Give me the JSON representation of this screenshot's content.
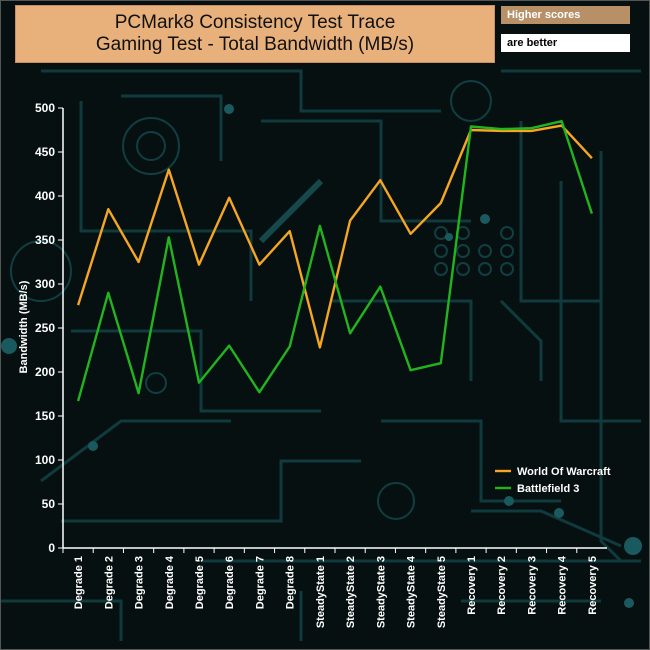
{
  "header": {
    "title_line1": "PCMark8 Consistency Test Trace",
    "title_line2": "Gaming Test - Total Bandwidth (MB/s)",
    "note_line1": "Higher scores",
    "note_line2": "are better"
  },
  "chart_data": {
    "type": "line",
    "ylabel": "Bandwidth (MB/s)",
    "xlabel": "",
    "ylim": [
      0,
      500
    ],
    "yticks": [
      0,
      50,
      100,
      150,
      200,
      250,
      300,
      350,
      400,
      450,
      500
    ],
    "grid": false,
    "legend_position": "bottom-right",
    "categories": [
      "Degrade 1",
      "Degrade 2",
      "Degrade 3",
      "Degrade 4",
      "Degrade 5",
      "Degrade 6",
      "Degrade 7",
      "Degrade 8",
      "SteadyState 1",
      "SteadyState 2",
      "SteadyState 3",
      "SteadyState 4",
      "SteadyState 5",
      "Recovery 1",
      "Recovery 2",
      "Recovery 3",
      "Recovery 4",
      "Recovery 5"
    ],
    "series": [
      {
        "name": "World Of Warcraft",
        "color": "#f5a623",
        "values": [
          276,
          385,
          325,
          430,
          322,
          398,
          322,
          360,
          228,
          372,
          418,
          357,
          392,
          475,
          474,
          474,
          480,
          443
        ]
      },
      {
        "name": "Battlefield 3",
        "color": "#22b41e",
        "values": [
          167,
          290,
          176,
          353,
          188,
          230,
          177,
          229,
          366,
          244,
          297,
          202,
          210,
          479,
          476,
          477,
          485,
          380
        ]
      }
    ]
  }
}
